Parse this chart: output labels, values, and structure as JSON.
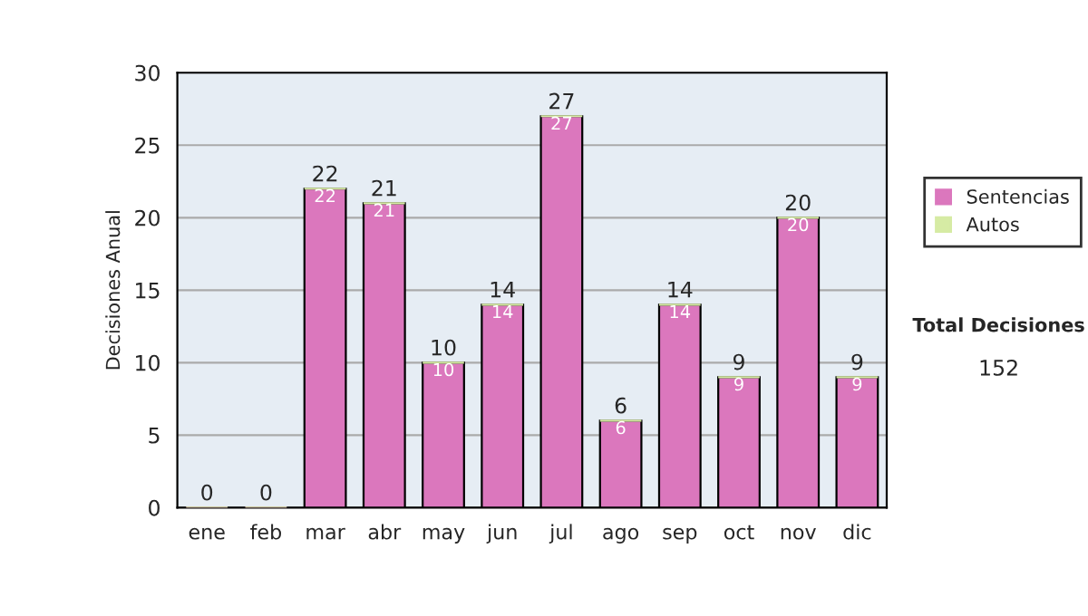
{
  "chart_data": {
    "type": "bar",
    "ylabel": "Decisiones Anual",
    "stacked": true,
    "categories": [
      "ene",
      "feb",
      "mar",
      "abr",
      "may",
      "jun",
      "jul",
      "ago",
      "sep",
      "oct",
      "nov",
      "dic"
    ],
    "series": [
      {
        "name": "Sentencias",
        "color": "#db77bd",
        "values": [
          0,
          0,
          22,
          21,
          10,
          14,
          27,
          6,
          14,
          9,
          20,
          9
        ],
        "value_labels": [
          null,
          null,
          "22",
          "21",
          "10",
          "14",
          "27",
          "6",
          "14",
          "9",
          "20",
          "9"
        ]
      },
      {
        "name": "Autos",
        "color": "#d6eba4",
        "values": [
          0,
          0,
          0,
          0,
          0,
          0,
          0,
          0,
          0,
          0,
          0,
          0
        ]
      }
    ],
    "totals": [
      "0",
      "0",
      "22",
      "21",
      "10",
      "14",
      "27",
      "6",
      "14",
      "9",
      "20",
      "9"
    ],
    "ylim": [
      0,
      30
    ],
    "yticks": [
      0,
      5,
      10,
      15,
      20,
      25,
      30
    ],
    "grid": "y",
    "legend": "right",
    "annotations": [
      "Total Decisiones",
      "152"
    ]
  }
}
